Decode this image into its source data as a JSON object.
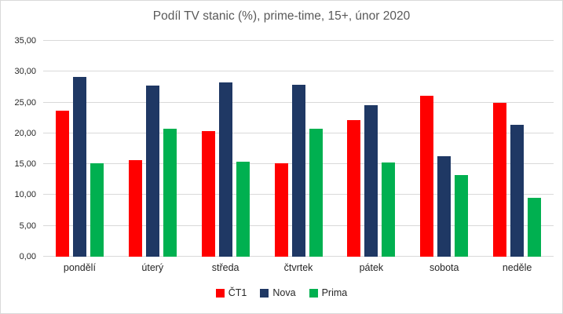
{
  "colors": {
    "background": "#ffffff",
    "chart_border": "#d9d9d9",
    "gridline": "#d9d9d9",
    "title_text": "#595959",
    "axis_text": "#262626"
  },
  "chart_data": {
    "type": "bar",
    "title": "Podíl TV stanic (%), prime-time, 15+, únor 2020",
    "categories": [
      "pondělí",
      "úterý",
      "středa",
      "čtvrtek",
      "pátek",
      "sobota",
      "neděle"
    ],
    "series": [
      {
        "name": "ČT1",
        "color": "#ff0000",
        "values": [
          23.7,
          15.6,
          20.4,
          15.1,
          22.2,
          26.1,
          24.9
        ]
      },
      {
        "name": "Nova",
        "color": "#1f3864",
        "values": [
          29.1,
          27.8,
          28.2,
          27.9,
          24.6,
          16.3,
          21.4
        ]
      },
      {
        "name": "Prima",
        "color": "#00b050",
        "values": [
          15.1,
          20.8,
          15.4,
          20.7,
          15.3,
          13.2,
          9.6
        ]
      }
    ],
    "y_axis": {
      "min": 0,
      "max": 35,
      "step": 5,
      "tick_labels": [
        "0,00",
        "5,00",
        "10,00",
        "15,00",
        "20,00",
        "25,00",
        "30,00",
        "35,00"
      ]
    },
    "xlabel": "",
    "ylabel": "",
    "grid": true,
    "legend_position": "bottom"
  }
}
